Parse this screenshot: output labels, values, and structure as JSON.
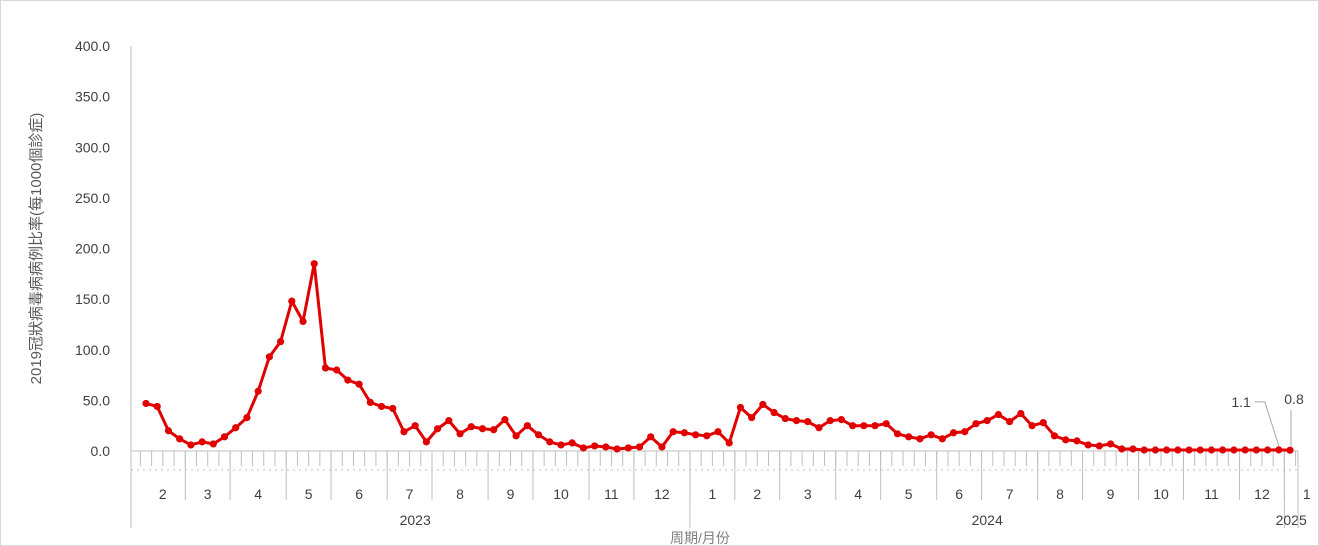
{
  "chart_data": {
    "type": "line",
    "ylabel": "2019冠狀病毒病病例比率(每1000個診症)",
    "xlabel": "周期/月份",
    "ylim": [
      0,
      400
    ],
    "y_tick_labels": [
      "0.0",
      "50.0",
      "100.0",
      "150.0",
      "200.0",
      "250.0",
      "300.0",
      "350.0",
      "400.0"
    ],
    "grid": false,
    "line_color": "#e00000",
    "years": [
      {
        "label": "2023",
        "months": [
          "2",
          "3",
          "4",
          "5",
          "6",
          "7",
          "8",
          "9",
          "10",
          "11",
          "12"
        ]
      },
      {
        "label": "2024",
        "months": [
          "1",
          "2",
          "3",
          "4",
          "5",
          "6",
          "7",
          "8",
          "9",
          "10",
          "11",
          "12"
        ]
      },
      {
        "label": "2025",
        "months": [
          "1"
        ]
      }
    ],
    "month_weeks": [
      4,
      4,
      5,
      4,
      5,
      4,
      5,
      4,
      5,
      4,
      5,
      4,
      4,
      5,
      4,
      5,
      4,
      5,
      4,
      5,
      4,
      5,
      4,
      4
    ],
    "series": [
      {
        "values": [
          47,
          44,
          20,
          12,
          6,
          9,
          7,
          14,
          23,
          33,
          59,
          93,
          108,
          148,
          128,
          185,
          82,
          80,
          70,
          66,
          48,
          44,
          42,
          19,
          25,
          9,
          22,
          30,
          17,
          24,
          22,
          21,
          31,
          15,
          25,
          16,
          9,
          6,
          8,
          3,
          5,
          4,
          2,
          3,
          4,
          14,
          4,
          19,
          18,
          16,
          15,
          19,
          8,
          43,
          33,
          46,
          38,
          32,
          30,
          29,
          23,
          30,
          31,
          25,
          25,
          25,
          27,
          17,
          14,
          12,
          16,
          12,
          18,
          19,
          27,
          30,
          36,
          29,
          37,
          25,
          28,
          15,
          11,
          10,
          6,
          5,
          7,
          2,
          2,
          1,
          1,
          1,
          1,
          1,
          1,
          1,
          1,
          1,
          1,
          1,
          1,
          1.1,
          0.8
        ]
      }
    ],
    "annotations": [
      {
        "text": "1.1",
        "point_index": 101
      },
      {
        "text": "0.8",
        "point_index": 102
      }
    ]
  }
}
